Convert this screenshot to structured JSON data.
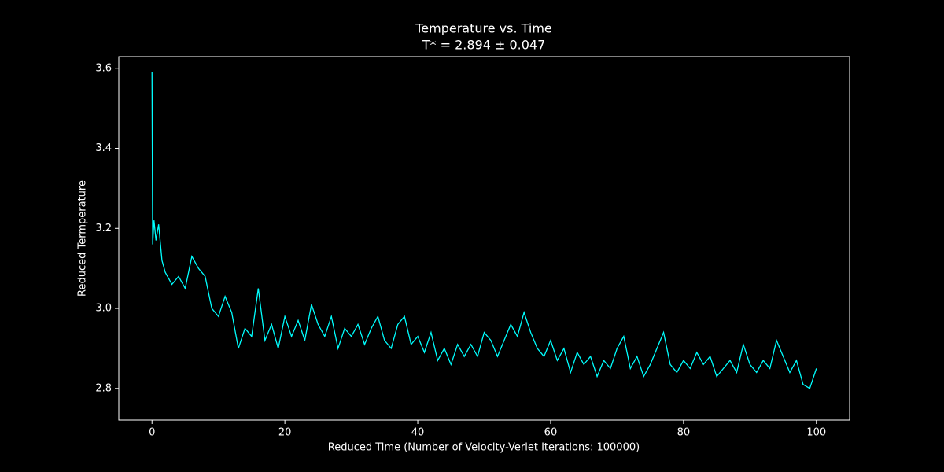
{
  "chart_data": {
    "type": "line",
    "title": "Temperature vs. Time",
    "subtitle": "T* = 2.894 ± 0.047",
    "x_label": "Reduced Time (Number of Velocity-Verlet Iterations: 100000)",
    "y_label": "Reduced Termperature",
    "xlim": [
      -5,
      105
    ],
    "ylim": [
      2.721,
      3.629
    ],
    "xticks": [
      0,
      20,
      40,
      60,
      80,
      100
    ],
    "yticks": [
      2.8,
      {
        "value": 3,
        "label": "3.0"
      },
      3.2,
      3.4,
      3.6
    ],
    "grid": false,
    "x": [
      0,
      0.1,
      0.3,
      0.6,
      1,
      1.5,
      2,
      3,
      4,
      5,
      6,
      7,
      8,
      9,
      10,
      11,
      12,
      13,
      14,
      15,
      16,
      17,
      18,
      19,
      20,
      21,
      22,
      23,
      24,
      25,
      26,
      27,
      28,
      29,
      30,
      31,
      32,
      33,
      34,
      35,
      36,
      37,
      38,
      39,
      40,
      41,
      42,
      43,
      44,
      45,
      46,
      47,
      48,
      49,
      50,
      51,
      52,
      53,
      54,
      55,
      56,
      57,
      58,
      59,
      60,
      61,
      62,
      63,
      64,
      65,
      66,
      67,
      68,
      69,
      70,
      71,
      72,
      73,
      74,
      75,
      76,
      77,
      78,
      79,
      80,
      81,
      82,
      83,
      84,
      85,
      86,
      87,
      88,
      89,
      90,
      91,
      92,
      93,
      94,
      95,
      96,
      97,
      98,
      99,
      100
    ],
    "series": [
      {
        "name": "Temperature",
        "color": "#00ffff",
        "values": [
          3.59,
          3.16,
          3.22,
          3.17,
          3.21,
          3.12,
          3.09,
          3.06,
          3.08,
          3.05,
          3.13,
          3.1,
          3.08,
          3.0,
          2.98,
          3.03,
          2.99,
          2.9,
          2.95,
          2.93,
          3.05,
          2.92,
          2.96,
          2.9,
          2.98,
          2.93,
          2.97,
          2.92,
          3.01,
          2.96,
          2.93,
          2.98,
          2.9,
          2.95,
          2.93,
          2.96,
          2.91,
          2.95,
          2.98,
          2.92,
          2.9,
          2.96,
          2.98,
          2.91,
          2.93,
          2.89,
          2.94,
          2.87,
          2.9,
          2.86,
          2.91,
          2.88,
          2.91,
          2.88,
          2.94,
          2.92,
          2.88,
          2.92,
          2.96,
          2.93,
          2.99,
          2.94,
          2.9,
          2.88,
          2.92,
          2.87,
          2.9,
          2.84,
          2.89,
          2.86,
          2.88,
          2.83,
          2.87,
          2.85,
          2.9,
          2.93,
          2.85,
          2.88,
          2.83,
          2.86,
          2.9,
          2.94,
          2.86,
          2.84,
          2.87,
          2.85,
          2.89,
          2.86,
          2.88,
          2.83,
          2.85,
          2.87,
          2.84,
          2.91,
          2.86,
          2.84,
          2.87,
          2.85,
          2.92,
          2.88,
          2.84,
          2.87,
          2.81,
          2.8,
          2.85
        ]
      }
    ]
  }
}
